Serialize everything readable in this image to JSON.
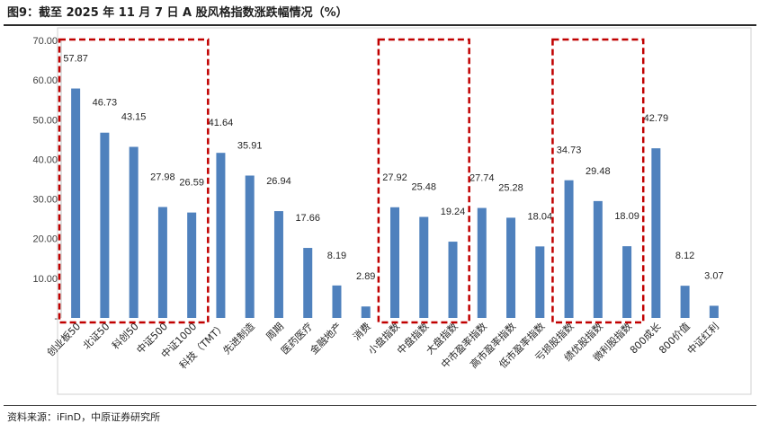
{
  "title": "图9：截至 2025 年 11 月 7 日 A 股风格指数涨跌幅情况（%）",
  "source": "资料来源：iFinD，中原证券研究所",
  "chart_data": {
    "type": "bar",
    "categories": [
      "创业板50",
      "北证50",
      "科创50",
      "中证500",
      "中证1000",
      "科技（TMT）",
      "先进制造",
      "周期",
      "医药医疗",
      "金融地产",
      "消费",
      "小盘指数",
      "中盘指数",
      "大盘指数",
      "中市盈率指数",
      "高市盈率指数",
      "低市盈率指数",
      "亏损股指数",
      "绩优股指数",
      "微利股指数",
      "800成长",
      "800价值",
      "中证红利"
    ],
    "values": [
      57.87,
      46.73,
      43.15,
      27.98,
      26.59,
      41.64,
      35.91,
      26.94,
      17.66,
      8.19,
      2.89,
      27.92,
      25.48,
      19.24,
      27.74,
      25.28,
      18.04,
      34.73,
      29.48,
      18.09,
      42.79,
      8.12,
      3.07
    ],
    "value_labels": [
      "57.87",
      "46.73",
      "43.15",
      "27.98",
      "26.59",
      "41.64",
      "35.91",
      "26.94",
      "17.66",
      "8.19",
      "2.89",
      "27.92",
      "25.48",
      "19.24",
      "27.74",
      "25.28",
      "18.04",
      "34.73",
      "29.48",
      "18.09",
      "42.79",
      "8.12",
      "3.07"
    ],
    "yticks": [
      "-",
      "10.00",
      "20.00",
      "30.00",
      "40.00",
      "50.00",
      "60.00",
      "70.00"
    ],
    "ylim": [
      0,
      70
    ],
    "title": "",
    "xlabel": "",
    "ylabel": "",
    "grid": false,
    "legend": "none",
    "bar_color": "#4F81BD",
    "highlight_color": "#C00000",
    "highlight_groups": [
      [
        0,
        4
      ],
      [
        11,
        13
      ],
      [
        17,
        19
      ]
    ]
  }
}
